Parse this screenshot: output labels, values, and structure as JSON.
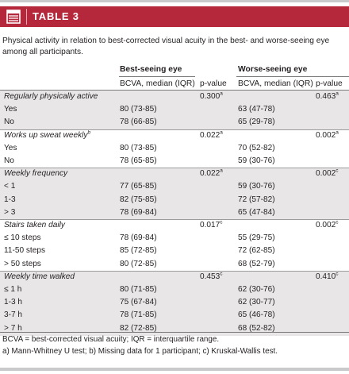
{
  "header": {
    "title": "TABLE 3",
    "icon": "table-icon",
    "color": "#b5273a"
  },
  "caption": "Physical activity in relation to best-corrected visual acuity in the best- and worse-seeing eye among all participants.",
  "columns": {
    "best_group": "Best-seeing eye",
    "worse_group": "Worse-seeing eye",
    "bcva": "BCVA, median (IQR)",
    "pvalue": "p-value"
  },
  "rows": [
    {
      "label": "Regularly physically active",
      "label_sup": "",
      "header": true,
      "p1": "0.300",
      "p1_sup": "a",
      "p2": "0.463",
      "p2_sup": "a"
    },
    {
      "label": "Yes",
      "b1": "80 (73-85)",
      "b2": "63 (47-78)"
    },
    {
      "label": "No",
      "b1": "78 (66-85)",
      "b2": "65 (29-78)"
    },
    {
      "label": "Works up sweat weekly",
      "label_sup": "b",
      "header": true,
      "p1": "0.022",
      "p1_sup": "a",
      "p2": "0.002",
      "p2_sup": "a"
    },
    {
      "label": "Yes",
      "b1": "80 (73-85)",
      "b2": "70 (52-82)"
    },
    {
      "label": "No",
      "b1": "78 (65-85)",
      "b2": "59 (30-76)"
    },
    {
      "label": "Weekly frequency",
      "label_sup": "",
      "header": true,
      "p1": "0.022",
      "p1_sup": "a",
      "p2": "0.002",
      "p2_sup": "c"
    },
    {
      "label": "< 1",
      "b1": "77 (65-85)",
      "b2": "59 (30-76)"
    },
    {
      "label": "1-3",
      "b1": "82 (75-85)",
      "b2": "72 (57-82)"
    },
    {
      "label": "> 3",
      "b1": "78 (69-84)",
      "b2": "65 (47-84)"
    },
    {
      "label": "Stairs taken daily",
      "label_sup": "",
      "header": true,
      "p1": "0.017",
      "p1_sup": "c",
      "p2": "0.002",
      "p2_sup": "c"
    },
    {
      "label": "≤ 10 steps",
      "b1": "78 (69-84)",
      "b2": "55 (29-75)"
    },
    {
      "label": "11-50 steps",
      "b1": "85 (72-85)",
      "b2": "72 (62-85)"
    },
    {
      "label": "> 50 steps",
      "b1": "80 (72-85)",
      "b2": "68 (52-79)"
    },
    {
      "label": "Weekly time walked",
      "label_sup": "",
      "header": true,
      "p1": "0.453",
      "p1_sup": "c",
      "p2": "0.410",
      "p2_sup": "c"
    },
    {
      "label": "≤ 1 h",
      "b1": "80 (71-85)",
      "b2": "62 (30-76)"
    },
    {
      "label": "1-3 h",
      "b1": "75 (67-84)",
      "b2": "62 (30-77)"
    },
    {
      "label": "3-7 h",
      "b1": "78 (71-85)",
      "b2": "65 (46-78)"
    },
    {
      "label": "> 7 h",
      "b1": "82 (72-85)",
      "b2": "68 (52-82)"
    }
  ],
  "footer": {
    "line1": "BCVA = best-corrected visual acuity;   IQR = interquartile range.",
    "line2": "a) Mann-Whitney U test;  b) Missing data for 1 participant;  c) Kruskal-Wallis test."
  }
}
